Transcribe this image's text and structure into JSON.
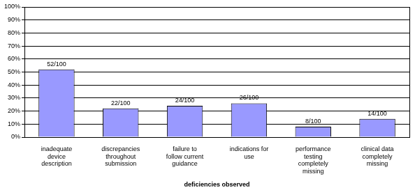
{
  "chart_data": {
    "type": "bar",
    "x_label": "deficiencies observed",
    "categories": [
      "inadequate device description",
      "discrepancies throughout submission",
      "failure to follow current guidance",
      "indications for use",
      "performance testing completely missing",
      "clinical data completely missing"
    ],
    "values": [
      52,
      22,
      24,
      26,
      8,
      14
    ],
    "value_labels": [
      "52/100",
      "22/100",
      "24/100",
      "26/100",
      "8/100",
      "14/100"
    ],
    "data_labels": true,
    "color": "#9999ff",
    "ylim": [
      0,
      100
    ],
    "yticks": [
      {
        "value": 0,
        "label": "0%"
      },
      {
        "value": 10,
        "label": "10%"
      },
      {
        "value": 20,
        "label": "20%"
      },
      {
        "value": 30,
        "label": "30%"
      },
      {
        "value": 40,
        "label": "40%"
      },
      {
        "value": 50,
        "label": "50%"
      },
      {
        "value": 60,
        "label": "60%"
      },
      {
        "value": 70,
        "label": "70%"
      },
      {
        "value": 80,
        "label": "80%"
      },
      {
        "value": 90,
        "label": "90%"
      },
      {
        "value": 100,
        "label": "100%"
      }
    ],
    "grid": true
  }
}
